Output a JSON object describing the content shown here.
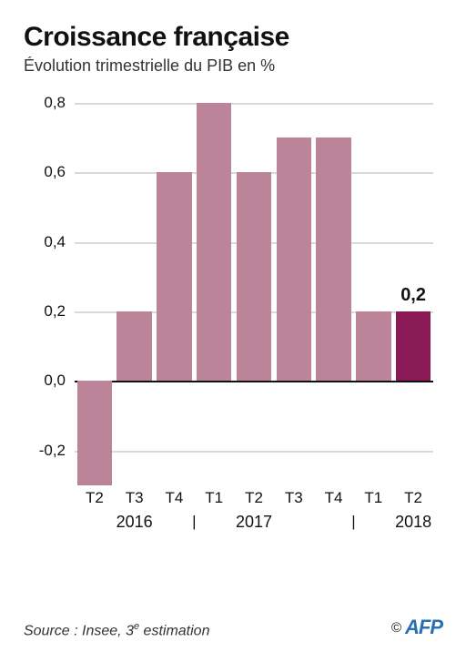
{
  "title": "Croissance française",
  "subtitle": "Évolution trimestrielle du PIB en %",
  "chart": {
    "type": "bar",
    "categories": [
      "T2",
      "T3",
      "T4",
      "T1",
      "T2",
      "T3",
      "T4",
      "T1",
      "T2"
    ],
    "values": [
      -0.3,
      0.2,
      0.6,
      0.8,
      0.6,
      0.7,
      0.7,
      0.2,
      0.2
    ],
    "bar_colors": [
      "#bb8499",
      "#bb8499",
      "#bb8499",
      "#bb8499",
      "#bb8499",
      "#bb8499",
      "#bb8499",
      "#bb8499",
      "#8a1a56"
    ],
    "highlight_index": 8,
    "highlight_label": "0,2",
    "ylim": [
      -0.3,
      0.8
    ],
    "yticks": [
      -0.2,
      0.0,
      0.2,
      0.4,
      0.6,
      0.8
    ],
    "ytick_labels": [
      "-0,2",
      "0,0",
      "0,2",
      "0,4",
      "0,6",
      "0,8"
    ],
    "zero_line_color": "#111111",
    "grid_color": "#d9d9d9",
    "bar_width": 0.88,
    "year_groups": [
      {
        "label": "2016",
        "center_index": 1
      },
      {
        "label": "2017",
        "center_index": 4
      },
      {
        "label": "2018",
        "center_index": 8
      }
    ],
    "separator_positions": [
      2.5,
      6.5
    ],
    "separator_glyph": "|",
    "background_color": "#ffffff",
    "label_fontsize": 17,
    "title_fontsize": 30
  },
  "source_prefix": "Source : Insee, 3",
  "source_suffix": " estimation",
  "source_sup": "e",
  "copyright_symbol": "©",
  "logo_text": "AFP"
}
